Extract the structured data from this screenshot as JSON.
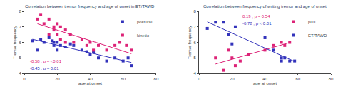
{
  "chart_data": [
    {
      "type": "scatter",
      "title": "Correlation between tremor frequency and age of onset in ET/TAWD",
      "x_label": "age at onset",
      "y_label": "Tremor frequency",
      "xlim": [
        0,
        80
      ],
      "ylim": [
        4,
        8
      ],
      "xticks": [
        0,
        20,
        40,
        60,
        80
      ],
      "yticks": [
        4,
        5,
        6,
        7,
        8
      ],
      "grid": false,
      "legend": "upper right",
      "series": [
        {
          "name": "postural",
          "color": "#3333bb",
          "marker": "square",
          "x": [
            5,
            8,
            10,
            12,
            15,
            17,
            18,
            18,
            20,
            20,
            22,
            25,
            28,
            30,
            35,
            38,
            40,
            42,
            45,
            50,
            55,
            60,
            63,
            65
          ],
          "values": [
            6.1,
            5.5,
            6.2,
            6.0,
            6.3,
            6.1,
            6.0,
            5.8,
            6.0,
            5.5,
            5.8,
            5.7,
            5.9,
            5.8,
            5.5,
            5.4,
            5.2,
            5.4,
            5.0,
            4.8,
            5.0,
            4.8,
            5.0,
            4.5
          ],
          "trendline": {
            "x": [
              5,
              65
            ],
            "values": [
              6.1996,
              4.703
            ]
          }
        },
        {
          "name": "kinetic",
          "color": "#dd2277",
          "marker": "square",
          "x": [
            8,
            10,
            12,
            15,
            15,
            18,
            18,
            20,
            20,
            22,
            22,
            25,
            25,
            28,
            30,
            35,
            38,
            40,
            42,
            45,
            50,
            55,
            58,
            62,
            65
          ],
          "values": [
            7.5,
            7.8,
            7.2,
            7.5,
            6.5,
            7.0,
            6.8,
            7.2,
            6.5,
            7.0,
            6.2,
            6.8,
            6.0,
            6.5,
            6.0,
            6.2,
            5.8,
            6.0,
            5.5,
            5.8,
            5.5,
            5.8,
            6.0,
            5.8,
            5.5
          ],
          "trendline": {
            "x": [
              8,
              65
            ],
            "values": [
              7.1985,
              5.2694
            ]
          }
        }
      ],
      "annotations": [
        {
          "text": "-0.58 , p = <0.01",
          "color": "#dd2277"
        },
        {
          "text": "-0.45 , p = 0.01",
          "color": "#3333bb"
        }
      ]
    },
    {
      "type": "scatter",
      "title": "Correlation between frequency of writing tremor and age of onset",
      "x_label": "age at onset",
      "y_label": "Tremor frequency",
      "xlim": [
        0,
        80
      ],
      "ylim": [
        4,
        8
      ],
      "xticks": [
        0,
        20,
        40,
        60,
        80
      ],
      "yticks": [
        4,
        5,
        6,
        7,
        8
      ],
      "grid": false,
      "legend": "upper right",
      "series": [
        {
          "name": "pDT",
          "color": "#dd2277",
          "marker": "square",
          "x": [
            10,
            15,
            18,
            20,
            22,
            25,
            30,
            40,
            45,
            50,
            52,
            55
          ],
          "values": [
            5.0,
            4.2,
            5.5,
            5.0,
            4.5,
            4.8,
            5.2,
            5.5,
            5.8,
            6.0,
            5.8,
            6.0
          ],
          "trendline": {
            "x": [
              10,
              55
            ],
            "values": [
              4.6041,
              5.9868
            ]
          }
        },
        {
          "name": "ET/TAWD",
          "color": "#3333bb",
          "marker": "square",
          "x": [
            5,
            10,
            15,
            18,
            20,
            22,
            40,
            45,
            50,
            50,
            52,
            55,
            58
          ],
          "values": [
            6.9,
            7.3,
            7.3,
            6.5,
            5.9,
            7.0,
            6.3,
            5.5,
            5.0,
            4.8,
            5.0,
            4.8,
            4.8
          ],
          "trendline": {
            "x": [
              5,
              58
            ],
            "values": [
              7.3234,
              4.7647
            ]
          }
        }
      ],
      "annotations": [
        {
          "text": "0.19 , p = 0.54",
          "color": "#dd2277"
        },
        {
          "text": "-0.78 , p < 0.01",
          "color": "#3333bb"
        }
      ]
    }
  ]
}
